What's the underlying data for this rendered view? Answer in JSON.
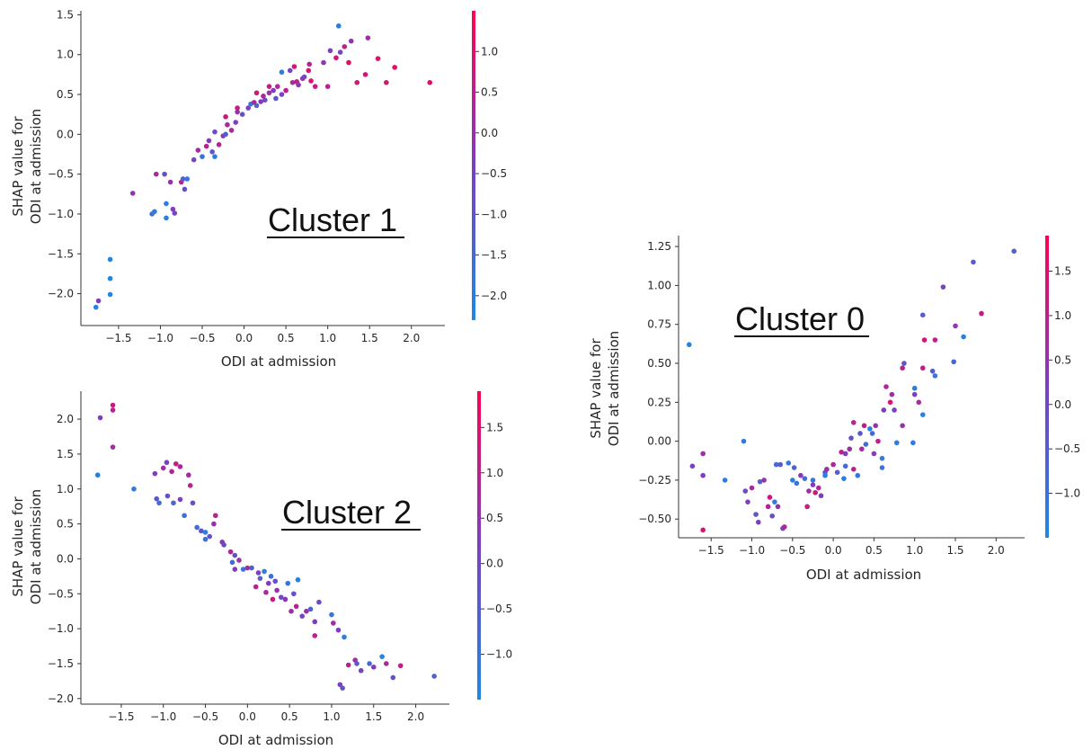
{
  "chart_data": [
    {
      "type": "scatter",
      "title": "Cluster 1",
      "xlabel": "ODI at admission",
      "ylabel": [
        "SHAP value for",
        "ODI at admission"
      ],
      "xlim": [
        -1.95,
        2.4
      ],
      "ylim": [
        -2.4,
        1.55
      ],
      "xticks": [
        "-1.5",
        "-1.0",
        "-0.5",
        "0.0",
        "0.5",
        "1.0",
        "1.5",
        "2.0"
      ],
      "yticks": [
        "1.5",
        "1.0",
        "0.5",
        "0.0",
        "-0.5",
        "-1.0",
        "-1.5",
        "-2.0"
      ],
      "colorbar": {
        "range": [
          -2.3,
          1.5
        ],
        "ticks": [
          "1.0",
          "0.5",
          "0.0",
          "-0.5",
          "-1.0",
          "-1.5",
          "-2.0"
        ]
      },
      "points": [
        [
          -1.77,
          -2.17,
          -2.2
        ],
        [
          -1.74,
          -2.09,
          -0.4
        ],
        [
          -1.6,
          -1.57,
          -2.2
        ],
        [
          -1.6,
          -1.81,
          -2.2
        ],
        [
          -1.6,
          -2.01,
          -2.2
        ],
        [
          -1.33,
          -0.74,
          -0.1
        ],
        [
          -1.1,
          -1.0,
          -1.7
        ],
        [
          -1.07,
          -0.97,
          -2.0
        ],
        [
          -1.05,
          -0.5,
          0.3
        ],
        [
          -0.95,
          -0.5,
          -0.8
        ],
        [
          -0.93,
          -0.87,
          -2.0
        ],
        [
          -0.93,
          -1.05,
          -2.0
        ],
        [
          -0.88,
          -0.6,
          0.0
        ],
        [
          -0.85,
          -0.94,
          -0.3
        ],
        [
          -0.83,
          -0.99,
          -0.6
        ],
        [
          -0.75,
          -0.6,
          0.4
        ],
        [
          -0.73,
          -0.56,
          -1.2
        ],
        [
          -0.71,
          -0.69,
          -0.8
        ],
        [
          -0.68,
          -0.56,
          -1.9
        ],
        [
          -0.6,
          -0.32,
          -0.5
        ],
        [
          -0.55,
          -0.2,
          0.2
        ],
        [
          -0.5,
          -0.28,
          -1.7
        ],
        [
          -0.45,
          -0.15,
          0.5
        ],
        [
          -0.42,
          -0.08,
          -0.2
        ],
        [
          -0.38,
          -0.22,
          -1.0
        ],
        [
          -0.35,
          -0.28,
          -2.0
        ],
        [
          -0.35,
          0.03,
          -0.7
        ],
        [
          -0.3,
          -0.13,
          0.4
        ],
        [
          -0.25,
          -0.02,
          -0.3
        ],
        [
          -0.22,
          0.0,
          -1.2
        ],
        [
          -0.2,
          0.12,
          0.1
        ],
        [
          -0.22,
          0.22,
          0.8
        ],
        [
          -0.15,
          0.05,
          0.3
        ],
        [
          -0.1,
          0.15,
          -0.4
        ],
        [
          -0.08,
          0.28,
          0.0
        ],
        [
          -0.08,
          0.33,
          0.6
        ],
        [
          -0.02,
          0.25,
          -0.9
        ],
        [
          0.05,
          0.33,
          -0.5
        ],
        [
          0.08,
          0.38,
          -2.0
        ],
        [
          0.12,
          0.4,
          0.2
        ],
        [
          0.15,
          0.36,
          -1.4
        ],
        [
          0.15,
          0.52,
          0.9
        ],
        [
          0.2,
          0.41,
          -0.2
        ],
        [
          0.23,
          0.48,
          0.4
        ],
        [
          0.25,
          0.43,
          -0.8
        ],
        [
          0.3,
          0.52,
          0.0
        ],
        [
          0.3,
          0.6,
          0.7
        ],
        [
          0.35,
          0.55,
          -0.3
        ],
        [
          0.38,
          0.45,
          -1.0
        ],
        [
          0.4,
          0.6,
          0.3
        ],
        [
          0.45,
          0.78,
          -2.0
        ],
        [
          0.45,
          0.5,
          -0.5
        ],
        [
          0.5,
          0.55,
          0.6
        ],
        [
          0.55,
          0.8,
          -0.6
        ],
        [
          0.58,
          0.65,
          0.2
        ],
        [
          0.6,
          0.85,
          0.9
        ],
        [
          0.63,
          0.66,
          0.6
        ],
        [
          0.65,
          0.62,
          -0.2
        ],
        [
          0.7,
          0.7,
          0.0
        ],
        [
          0.72,
          0.72,
          -0.6
        ],
        [
          0.77,
          0.8,
          0.9
        ],
        [
          0.78,
          0.88,
          0.4
        ],
        [
          0.8,
          0.67,
          1.0
        ],
        [
          0.85,
          0.6,
          0.7
        ],
        [
          0.95,
          0.9,
          -0.2
        ],
        [
          1.0,
          0.6,
          0.5
        ],
        [
          1.03,
          1.05,
          -0.4
        ],
        [
          1.1,
          0.96,
          0.8
        ],
        [
          1.13,
          1.36,
          -2.0
        ],
        [
          1.15,
          1.03,
          -0.5
        ],
        [
          1.2,
          1.1,
          0.6
        ],
        [
          1.25,
          0.9,
          1.2
        ],
        [
          1.28,
          1.17,
          -0.1
        ],
        [
          1.35,
          0.65,
          0.9
        ],
        [
          1.48,
          1.21,
          0.1
        ],
        [
          1.45,
          0.75,
          0.8
        ],
        [
          1.6,
          0.95,
          1.0
        ],
        [
          1.7,
          0.65,
          0.9
        ],
        [
          1.8,
          0.84,
          1.2
        ],
        [
          2.22,
          0.65,
          1.1
        ]
      ]
    },
    {
      "type": "scatter",
      "title": "Cluster 2",
      "xlabel": "ODI at admission",
      "ylabel": [
        "SHAP value for",
        "ODI at admission"
      ],
      "xlim": [
        -1.98,
        2.4
      ],
      "ylim": [
        -2.08,
        2.4
      ],
      "xticks": [
        "-1.5",
        "-1.0",
        "-0.5",
        "0.0",
        "0.5",
        "1.0",
        "1.5",
        "2.0"
      ],
      "yticks": [
        "2.0",
        "1.5",
        "1.0",
        "0.5",
        "0.0",
        "-0.5",
        "-1.0",
        "-1.5",
        "-2.0"
      ],
      "colorbar": {
        "range": [
          -1.5,
          1.9
        ],
        "ticks": [
          "1.5",
          "1.0",
          "0.5",
          "0.0",
          "-0.5",
          "-1.0"
        ]
      },
      "points": [
        [
          -1.78,
          1.2,
          -1.3
        ],
        [
          -1.75,
          2.02,
          0.2
        ],
        [
          -1.6,
          2.2,
          1.2
        ],
        [
          -1.6,
          2.13,
          0.9
        ],
        [
          -1.6,
          1.6,
          0.7
        ],
        [
          -1.35,
          1.0,
          -1.2
        ],
        [
          -1.1,
          1.22,
          0.2
        ],
        [
          -1.08,
          0.86,
          -0.3
        ],
        [
          -1.05,
          0.8,
          -0.9
        ],
        [
          -1.0,
          1.3,
          0.6
        ],
        [
          -0.96,
          1.38,
          0.1
        ],
        [
          -0.95,
          0.9,
          -0.2
        ],
        [
          -0.9,
          1.25,
          0.8
        ],
        [
          -0.88,
          0.8,
          -0.6
        ],
        [
          -0.85,
          1.36,
          1.2
        ],
        [
          -0.8,
          1.32,
          0.8
        ],
        [
          -0.8,
          0.85,
          0.1
        ],
        [
          -0.75,
          0.62,
          -1.0
        ],
        [
          -0.7,
          1.2,
          0.7
        ],
        [
          -0.68,
          1.05,
          1.0
        ],
        [
          -0.65,
          0.8,
          -0.1
        ],
        [
          -0.6,
          0.45,
          -0.8
        ],
        [
          -0.55,
          0.4,
          -0.3
        ],
        [
          -0.5,
          0.38,
          -1.2
        ],
        [
          -0.5,
          0.28,
          -0.9
        ],
        [
          -0.45,
          0.32,
          -0.2
        ],
        [
          -0.4,
          0.5,
          0.5
        ],
        [
          -0.38,
          0.62,
          1.0
        ],
        [
          -0.3,
          0.24,
          0.4
        ],
        [
          -0.28,
          0.2,
          -0.1
        ],
        [
          -0.2,
          0.1,
          0.9
        ],
        [
          -0.18,
          -0.05,
          -0.7
        ],
        [
          -0.15,
          -0.15,
          0.3
        ],
        [
          -0.15,
          0.05,
          -0.2
        ],
        [
          -0.1,
          -0.02,
          0.5
        ],
        [
          -0.05,
          -0.15,
          -1.0
        ],
        [
          0.0,
          -0.13,
          0.6
        ],
        [
          0.05,
          -0.13,
          -0.4
        ],
        [
          0.1,
          -0.4,
          1.0
        ],
        [
          0.13,
          -0.2,
          0.2
        ],
        [
          0.15,
          -0.28,
          -0.6
        ],
        [
          0.2,
          -0.18,
          -1.2
        ],
        [
          0.22,
          -0.48,
          0.8
        ],
        [
          0.25,
          -0.35,
          0.3
        ],
        [
          0.28,
          -0.25,
          -0.9
        ],
        [
          0.3,
          -0.58,
          1.2
        ],
        [
          0.33,
          -0.32,
          -0.2
        ],
        [
          0.35,
          -0.45,
          0.5
        ],
        [
          0.4,
          -0.55,
          -0.1
        ],
        [
          0.45,
          -0.58,
          0.4
        ],
        [
          0.48,
          -0.35,
          -1.0
        ],
        [
          0.52,
          -0.75,
          0.7
        ],
        [
          0.55,
          -0.5,
          -0.3
        ],
        [
          0.58,
          -0.68,
          1.0
        ],
        [
          0.6,
          -0.3,
          -1.3
        ],
        [
          0.65,
          -0.82,
          0.1
        ],
        [
          0.7,
          -0.75,
          0.5
        ],
        [
          0.75,
          -0.72,
          -0.7
        ],
        [
          0.8,
          -0.9,
          0.3
        ],
        [
          0.8,
          -1.1,
          1.0
        ],
        [
          0.85,
          -0.62,
          -0.1
        ],
        [
          1.0,
          -0.8,
          -1.1
        ],
        [
          1.02,
          -0.92,
          0.7
        ],
        [
          1.08,
          -1.02,
          0.2
        ],
        [
          1.1,
          -1.8,
          0.1
        ],
        [
          1.13,
          -1.85,
          -0.3
        ],
        [
          1.15,
          -1.12,
          -1.2
        ],
        [
          1.2,
          -1.52,
          1.0
        ],
        [
          1.28,
          -1.45,
          0.6
        ],
        [
          1.3,
          -1.5,
          -0.4
        ],
        [
          1.35,
          -1.6,
          0.1
        ],
        [
          1.45,
          -1.5,
          -0.8
        ],
        [
          1.5,
          -1.55,
          0.3
        ],
        [
          1.6,
          -1.4,
          -1.4
        ],
        [
          1.65,
          -1.5,
          0.8
        ],
        [
          1.73,
          -1.7,
          -0.3
        ],
        [
          1.82,
          -1.53,
          1.1
        ],
        [
          2.22,
          -1.68,
          -0.6
        ]
      ]
    },
    {
      "type": "scatter",
      "title": "Cluster 0",
      "xlabel": "ODI at admission",
      "ylabel": [
        "SHAP value for",
        "ODI at admission"
      ],
      "xlim": [
        -1.9,
        2.35
      ],
      "ylim": [
        -0.62,
        1.32
      ],
      "xticks": [
        "-1.5",
        "-1.0",
        "-0.5",
        "0.0",
        "0.5",
        "1.0",
        "1.5",
        "2.0"
      ],
      "yticks": [
        "1.25",
        "1.00",
        "0.75",
        "0.50",
        "0.25",
        "0.00",
        "-0.25",
        "-0.50"
      ],
      "colorbar": {
        "range": [
          -1.5,
          1.9
        ],
        "ticks": [
          "1.5",
          "1.0",
          "0.5",
          "0.0",
          "-0.5",
          "-1.0"
        ]
      },
      "points": [
        [
          -1.77,
          0.62,
          -1.4
        ],
        [
          -1.73,
          -0.16,
          0.1
        ],
        [
          -1.6,
          -0.08,
          0.6
        ],
        [
          -1.6,
          -0.22,
          0.2
        ],
        [
          -1.6,
          -0.57,
          1.4
        ],
        [
          -1.33,
          -0.25,
          -1.2
        ],
        [
          -1.1,
          0.0,
          -1.2
        ],
        [
          -1.08,
          -0.32,
          -0.1
        ],
        [
          -1.05,
          -0.39,
          0.3
        ],
        [
          -1.0,
          -0.3,
          0.8
        ],
        [
          -0.95,
          -0.47,
          -0.3
        ],
        [
          -0.92,
          -0.52,
          0.2
        ],
        [
          -0.9,
          -0.26,
          -0.6
        ],
        [
          -0.85,
          -0.25,
          0.5
        ],
        [
          -0.8,
          -0.42,
          0.9
        ],
        [
          -0.78,
          -0.36,
          1.3
        ],
        [
          -0.75,
          -0.48,
          -0.2
        ],
        [
          -0.72,
          -0.39,
          -1.2
        ],
        [
          -0.7,
          -0.15,
          -0.9
        ],
        [
          -0.68,
          -0.42,
          0.6
        ],
        [
          -0.65,
          -0.15,
          -0.4
        ],
        [
          -0.62,
          -0.56,
          0.0
        ],
        [
          -0.6,
          -0.55,
          0.9
        ],
        [
          -0.55,
          -0.14,
          -1.1
        ],
        [
          -0.5,
          -0.25,
          -1.3
        ],
        [
          -0.48,
          -0.17,
          -0.6
        ],
        [
          -0.45,
          -0.27,
          -1.1
        ],
        [
          -0.4,
          -0.22,
          0.4
        ],
        [
          -0.35,
          -0.24,
          -0.8
        ],
        [
          -0.32,
          -0.42,
          1.2
        ],
        [
          -0.3,
          -0.32,
          0.7
        ],
        [
          -0.25,
          -0.25,
          -1.0
        ],
        [
          -0.25,
          -0.28,
          0.2
        ],
        [
          -0.22,
          -0.33,
          1.3
        ],
        [
          -0.18,
          -0.3,
          0.8
        ],
        [
          -0.15,
          -0.35,
          0.3
        ],
        [
          -0.1,
          -0.2,
          -0.3
        ],
        [
          -0.1,
          -0.22,
          -1.2
        ],
        [
          -0.08,
          -0.18,
          0.6
        ],
        [
          0.0,
          -0.15,
          0.9
        ],
        [
          0.05,
          -0.2,
          -0.5
        ],
        [
          0.1,
          -0.07,
          1.0
        ],
        [
          0.13,
          -0.24,
          -1.3
        ],
        [
          0.15,
          -0.08,
          0.3
        ],
        [
          0.15,
          -0.16,
          -0.8
        ],
        [
          0.2,
          -0.05,
          0.6
        ],
        [
          0.22,
          0.02,
          -0.2
        ],
        [
          0.25,
          -0.18,
          1.1
        ],
        [
          0.25,
          0.12,
          0.9
        ],
        [
          0.3,
          -0.22,
          -1.1
        ],
        [
          0.33,
          0.05,
          -0.4
        ],
        [
          0.35,
          -0.05,
          0.8
        ],
        [
          0.38,
          0.1,
          1.2
        ],
        [
          0.4,
          -0.02,
          -0.9
        ],
        [
          0.45,
          0.08,
          -1.3
        ],
        [
          0.48,
          0.05,
          -0.7
        ],
        [
          0.5,
          -0.08,
          0.3
        ],
        [
          0.52,
          0.1,
          0.6
        ],
        [
          0.55,
          0.0,
          1.0
        ],
        [
          0.6,
          -0.11,
          -1.2
        ],
        [
          0.6,
          -0.17,
          -1.0
        ],
        [
          0.62,
          0.2,
          0.2
        ],
        [
          0.65,
          0.35,
          0.8
        ],
        [
          0.7,
          0.25,
          1.4
        ],
        [
          0.72,
          0.3,
          0.6
        ],
        [
          0.75,
          0.2,
          0.1
        ],
        [
          0.78,
          -0.01,
          -1.2
        ],
        [
          0.85,
          0.47,
          0.9
        ],
        [
          0.87,
          0.5,
          -0.3
        ],
        [
          0.85,
          0.1,
          0.5
        ],
        [
          0.98,
          -0.01,
          -1.2
        ],
        [
          1.0,
          0.34,
          -1.3
        ],
        [
          1.0,
          0.3,
          0.1
        ],
        [
          1.05,
          0.25,
          0.7
        ],
        [
          1.1,
          0.17,
          -1.4
        ],
        [
          1.1,
          0.47,
          1.1
        ],
        [
          1.1,
          0.81,
          -0.4
        ],
        [
          1.12,
          0.65,
          1.3
        ],
        [
          1.22,
          0.45,
          -0.5
        ],
        [
          1.25,
          0.65,
          1.0
        ],
        [
          1.25,
          0.42,
          -1.0
        ],
        [
          1.35,
          0.99,
          0.1
        ],
        [
          1.48,
          0.51,
          -0.7
        ],
        [
          1.5,
          0.74,
          0.4
        ],
        [
          1.6,
          0.67,
          -1.3
        ],
        [
          1.72,
          1.15,
          -0.4
        ],
        [
          1.82,
          0.82,
          1.2
        ],
        [
          2.22,
          1.22,
          -0.5
        ]
      ]
    }
  ]
}
